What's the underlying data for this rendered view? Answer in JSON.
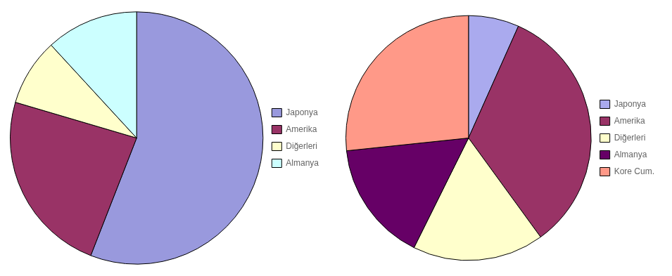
{
  "chart_data": [
    {
      "type": "pie",
      "categories": [
        "Japonya",
        "Amerika",
        "Diğerleri",
        "Almanya"
      ],
      "values": [
        52,
        22,
        8,
        11
      ],
      "colors": [
        "#9999dd",
        "#993366",
        "#ffffcc",
        "#ccffff"
      ],
      "legend": "right"
    },
    {
      "type": "pie",
      "categories": [
        "Japonya",
        "Amerika",
        "Diğerleri",
        "Almanya",
        "Kore Cum."
      ],
      "values": [
        5,
        25,
        13,
        12,
        20
      ],
      "colors": [
        "#aaaaee",
        "#993366",
        "#ffffcc",
        "#660066",
        "#ff9988"
      ],
      "legend": "right"
    }
  ]
}
